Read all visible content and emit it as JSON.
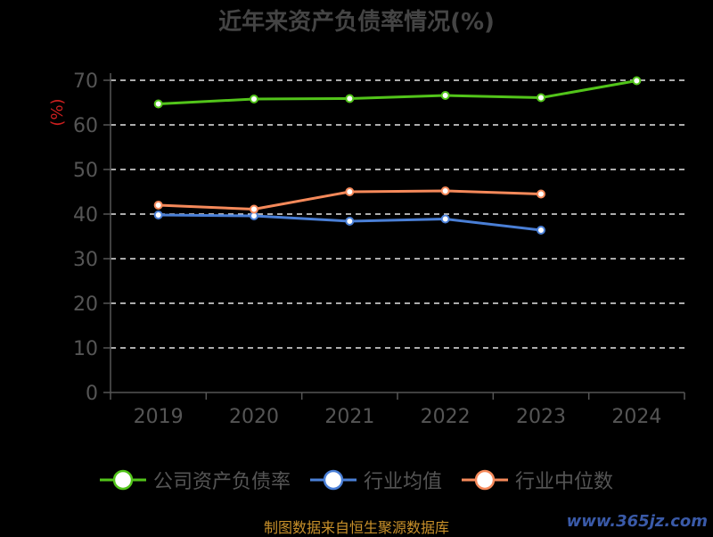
{
  "chart_data": {
    "type": "line",
    "title": "近年来资产负债率情况(%)",
    "ylabel": "(%)",
    "xlabel": "",
    "categories": [
      "2019",
      "2020",
      "2021",
      "2022",
      "2023",
      "2024"
    ],
    "ylim": [
      0,
      70
    ],
    "yticks": [
      0,
      10,
      20,
      30,
      40,
      50,
      60,
      70
    ],
    "grid": true,
    "legend_position": "bottom",
    "series": [
      {
        "name": "公司资产负债率",
        "color": "#52c41a",
        "values": [
          64.7,
          65.8,
          65.9,
          66.6,
          66.1,
          69.9
        ]
      },
      {
        "name": "行业均值",
        "color": "#4a7fd6",
        "values": [
          39.8,
          39.6,
          38.4,
          38.9,
          36.4,
          null
        ]
      },
      {
        "name": "行业中位数",
        "color": "#f5895a",
        "values": [
          42.0,
          41.1,
          45.0,
          45.2,
          44.5,
          null
        ]
      }
    ]
  },
  "footer": {
    "source": "制图数据来自恒生聚源数据库",
    "watermark": "www.365jz.com"
  }
}
